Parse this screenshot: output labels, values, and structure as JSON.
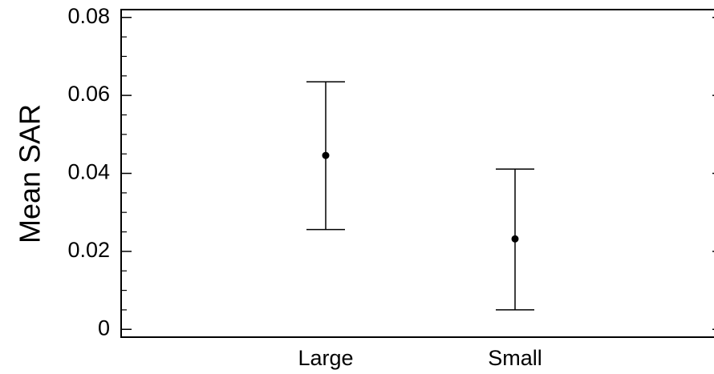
{
  "chart_data": {
    "type": "scatter",
    "title": "",
    "xlabel": "",
    "ylabel": "Mean SAR",
    "categories": [
      "Large",
      "Small"
    ],
    "series": [
      {
        "values": [
          0.0446,
          0.0232
        ],
        "error_upper": [
          0.0635,
          0.0411
        ],
        "error_lower": [
          0.0256,
          0.005
        ]
      }
    ],
    "ylim": [
      -0.002,
      0.082
    ],
    "yticks": [
      0,
      0.02,
      0.04,
      0.06,
      0.08
    ],
    "ytick_labels": [
      "0",
      "0.02",
      "0.04",
      "0.06",
      "0.08"
    ],
    "grid": false,
    "legend": "none"
  }
}
